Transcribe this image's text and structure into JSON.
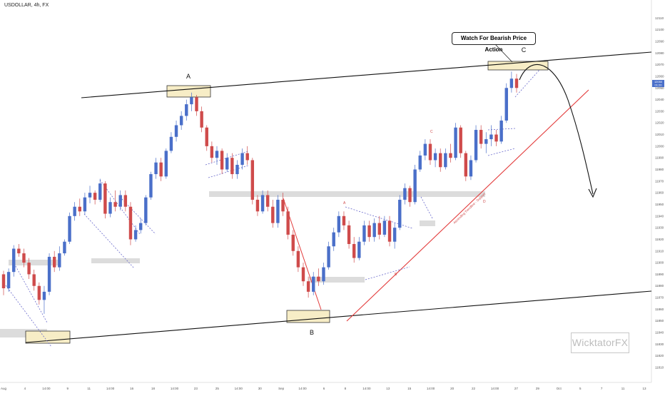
{
  "symbol": "USDOLLAR, 4h, FX",
  "annotations": {
    "callout": "Watch For Bearish Price Action",
    "label_a": "A",
    "label_b": "B",
    "label_c": "C",
    "trendline_label": "Ascending Trendline - Support",
    "small_a": "A",
    "small_b": "B",
    "small_c": "C",
    "small_d": "D"
  },
  "logo": "WicktatorFX",
  "chart_data": {
    "type": "candlestick",
    "symbol": "USDOLLAR",
    "timeframe": "4h",
    "ylim": [
      11810,
      12120
    ],
    "y_ticks": [
      "12110",
      "12100",
      "12090",
      "12080",
      "12070",
      "12060",
      "12050",
      "12040",
      "12030",
      "12020",
      "12010",
      "12000",
      "11990",
      "11980",
      "11970",
      "11960",
      "11950",
      "11940",
      "11930",
      "11920",
      "11910",
      "11900",
      "11890",
      "11880",
      "11870",
      "11860",
      "11850",
      "11840",
      "11830",
      "11820",
      "11810"
    ],
    "x_ticks": [
      "Aug",
      "4",
      "14:00",
      "9",
      "11",
      "14:00",
      "16",
      "18",
      "14:00",
      "23",
      "25",
      "14:00",
      "30",
      "Sep",
      "14:00",
      "6",
      "8",
      "14:00",
      "13",
      "15",
      "14:00",
      "20",
      "22",
      "14:00",
      "27",
      "29",
      "Oct",
      "5",
      "7",
      "11",
      "13"
    ],
    "price_tags": [
      "12050",
      "01:20"
    ],
    "colors": {
      "up": "#4a6fc9",
      "down": "#cf4b4b",
      "zone": "#f6ecc4",
      "grey_zone": "#d9d9d9",
      "trendline": "#e33b3b"
    },
    "key_points": [
      {
        "label": "A",
        "time": "Aug 21",
        "price": 12044
      },
      {
        "label": "B",
        "time": "Sep 4",
        "price": 11872
      },
      {
        "label": "C",
        "time": "Sep 28",
        "price": 12064
      }
    ],
    "candles": [
      {
        "o": 11890,
        "h": 11893,
        "l": 11872,
        "c": 11878
      },
      {
        "o": 11878,
        "h": 11895,
        "l": 11875,
        "c": 11892
      },
      {
        "o": 11892,
        "h": 11915,
        "l": 11888,
        "c": 11912
      },
      {
        "o": 11912,
        "h": 11916,
        "l": 11905,
        "c": 11908
      },
      {
        "o": 11908,
        "h": 11912,
        "l": 11896,
        "c": 11900
      },
      {
        "o": 11900,
        "h": 11904,
        "l": 11886,
        "c": 11890
      },
      {
        "o": 11890,
        "h": 11894,
        "l": 11876,
        "c": 11880
      },
      {
        "o": 11880,
        "h": 11883,
        "l": 11864,
        "c": 11868
      },
      {
        "o": 11868,
        "h": 11880,
        "l": 11856,
        "c": 11875
      },
      {
        "o": 11875,
        "h": 11908,
        "l": 11872,
        "c": 11905
      },
      {
        "o": 11905,
        "h": 11910,
        "l": 11892,
        "c": 11896
      },
      {
        "o": 11896,
        "h": 11914,
        "l": 11893,
        "c": 11908
      },
      {
        "o": 11908,
        "h": 11920,
        "l": 11906,
        "c": 11918
      },
      {
        "o": 11918,
        "h": 11943,
        "l": 11916,
        "c": 11940
      },
      {
        "o": 11940,
        "h": 11952,
        "l": 11936,
        "c": 11948
      },
      {
        "o": 11948,
        "h": 11955,
        "l": 11940,
        "c": 11944
      },
      {
        "o": 11944,
        "h": 11960,
        "l": 11941,
        "c": 11956
      },
      {
        "o": 11956,
        "h": 11966,
        "l": 11951,
        "c": 11960
      },
      {
        "o": 11960,
        "h": 11962,
        "l": 11950,
        "c": 11954
      },
      {
        "o": 11954,
        "h": 11972,
        "l": 11952,
        "c": 11968
      },
      {
        "o": 11968,
        "h": 11970,
        "l": 11938,
        "c": 11942
      },
      {
        "o": 11942,
        "h": 11956,
        "l": 11939,
        "c": 11952
      },
      {
        "o": 11952,
        "h": 11962,
        "l": 11944,
        "c": 11948
      },
      {
        "o": 11948,
        "h": 11962,
        "l": 11945,
        "c": 11958
      },
      {
        "o": 11958,
        "h": 11962,
        "l": 11944,
        "c": 11948
      },
      {
        "o": 11948,
        "h": 11952,
        "l": 11915,
        "c": 11920
      },
      {
        "o": 11920,
        "h": 11932,
        "l": 11918,
        "c": 11928
      },
      {
        "o": 11928,
        "h": 11938,
        "l": 11925,
        "c": 11934
      },
      {
        "o": 11934,
        "h": 11958,
        "l": 11932,
        "c": 11956
      },
      {
        "o": 11956,
        "h": 11978,
        "l": 11954,
        "c": 11976
      },
      {
        "o": 11976,
        "h": 11990,
        "l": 11972,
        "c": 11986
      },
      {
        "o": 11986,
        "h": 11990,
        "l": 11970,
        "c": 11974
      },
      {
        "o": 11974,
        "h": 11998,
        "l": 11972,
        "c": 11996
      },
      {
        "o": 11996,
        "h": 12012,
        "l": 11994,
        "c": 12008
      },
      {
        "o": 12008,
        "h": 12022,
        "l": 12004,
        "c": 12018
      },
      {
        "o": 12018,
        "h": 12030,
        "l": 12014,
        "c": 12026
      },
      {
        "o": 12026,
        "h": 12040,
        "l": 12022,
        "c": 12036
      },
      {
        "o": 12036,
        "h": 12046,
        "l": 12030,
        "c": 12042
      },
      {
        "o": 12042,
        "h": 12044,
        "l": 12026,
        "c": 12030
      },
      {
        "o": 12030,
        "h": 12034,
        "l": 12012,
        "c": 12016
      },
      {
        "o": 12016,
        "h": 12018,
        "l": 11996,
        "c": 12000
      },
      {
        "o": 12000,
        "h": 12004,
        "l": 11986,
        "c": 11990
      },
      {
        "o": 11990,
        "h": 12000,
        "l": 11984,
        "c": 11996
      },
      {
        "o": 11996,
        "h": 11998,
        "l": 11976,
        "c": 11980
      },
      {
        "o": 11980,
        "h": 11994,
        "l": 11978,
        "c": 11990
      },
      {
        "o": 11990,
        "h": 11994,
        "l": 11972,
        "c": 11976
      },
      {
        "o": 11976,
        "h": 11988,
        "l": 11972,
        "c": 11984
      },
      {
        "o": 11984,
        "h": 11998,
        "l": 11980,
        "c": 11994
      },
      {
        "o": 11994,
        "h": 12000,
        "l": 11984,
        "c": 11988
      },
      {
        "o": 11988,
        "h": 11990,
        "l": 11950,
        "c": 11954
      },
      {
        "o": 11954,
        "h": 11958,
        "l": 11940,
        "c": 11944
      },
      {
        "o": 11944,
        "h": 11962,
        "l": 11942,
        "c": 11958
      },
      {
        "o": 11958,
        "h": 11962,
        "l": 11944,
        "c": 11948
      },
      {
        "o": 11948,
        "h": 11954,
        "l": 11930,
        "c": 11934
      },
      {
        "o": 11934,
        "h": 11958,
        "l": 11930,
        "c": 11954
      },
      {
        "o": 11954,
        "h": 11960,
        "l": 11940,
        "c": 11944
      },
      {
        "o": 11944,
        "h": 11948,
        "l": 11920,
        "c": 11924
      },
      {
        "o": 11924,
        "h": 11928,
        "l": 11906,
        "c": 11910
      },
      {
        "o": 11910,
        "h": 11914,
        "l": 11892,
        "c": 11896
      },
      {
        "o": 11896,
        "h": 11900,
        "l": 11880,
        "c": 11884
      },
      {
        "o": 11884,
        "h": 11888,
        "l": 11870,
        "c": 11875
      },
      {
        "o": 11875,
        "h": 11892,
        "l": 11872,
        "c": 11888
      },
      {
        "o": 11888,
        "h": 11895,
        "l": 11880,
        "c": 11884
      },
      {
        "o": 11884,
        "h": 11900,
        "l": 11881,
        "c": 11896
      },
      {
        "o": 11896,
        "h": 11918,
        "l": 11894,
        "c": 11914
      },
      {
        "o": 11914,
        "h": 11930,
        "l": 11910,
        "c": 11926
      },
      {
        "o": 11926,
        "h": 11944,
        "l": 11922,
        "c": 11940
      },
      {
        "o": 11940,
        "h": 11944,
        "l": 11928,
        "c": 11932
      },
      {
        "o": 11932,
        "h": 11936,
        "l": 11912,
        "c": 11916
      },
      {
        "o": 11916,
        "h": 11922,
        "l": 11900,
        "c": 11904
      },
      {
        "o": 11904,
        "h": 11922,
        "l": 11902,
        "c": 11918
      },
      {
        "o": 11918,
        "h": 11936,
        "l": 11915,
        "c": 11932
      },
      {
        "o": 11932,
        "h": 11936,
        "l": 11918,
        "c": 11922
      },
      {
        "o": 11922,
        "h": 11938,
        "l": 11918,
        "c": 11934
      },
      {
        "o": 11934,
        "h": 11940,
        "l": 11920,
        "c": 11924
      },
      {
        "o": 11924,
        "h": 11940,
        "l": 11922,
        "c": 11936
      },
      {
        "o": 11936,
        "h": 11940,
        "l": 11914,
        "c": 11918
      },
      {
        "o": 11918,
        "h": 11934,
        "l": 11912,
        "c": 11930
      },
      {
        "o": 11930,
        "h": 11958,
        "l": 11928,
        "c": 11954
      },
      {
        "o": 11954,
        "h": 11968,
        "l": 11950,
        "c": 11964
      },
      {
        "o": 11964,
        "h": 11966,
        "l": 11948,
        "c": 11952
      },
      {
        "o": 11952,
        "h": 11984,
        "l": 11950,
        "c": 11980
      },
      {
        "o": 11980,
        "h": 11996,
        "l": 11978,
        "c": 11992
      },
      {
        "o": 11992,
        "h": 12006,
        "l": 11988,
        "c": 12002
      },
      {
        "o": 12002,
        "h": 12006,
        "l": 11984,
        "c": 11988
      },
      {
        "o": 11988,
        "h": 11998,
        "l": 11982,
        "c": 11994
      },
      {
        "o": 11994,
        "h": 11998,
        "l": 11978,
        "c": 11982
      },
      {
        "o": 11982,
        "h": 11998,
        "l": 11980,
        "c": 11994
      },
      {
        "o": 11994,
        "h": 12002,
        "l": 11986,
        "c": 11990
      },
      {
        "o": 11990,
        "h": 12020,
        "l": 11988,
        "c": 12016
      },
      {
        "o": 12016,
        "h": 12018,
        "l": 11990,
        "c": 11994
      },
      {
        "o": 11994,
        "h": 11996,
        "l": 11970,
        "c": 11974
      },
      {
        "o": 11974,
        "h": 11992,
        "l": 11971,
        "c": 11988
      },
      {
        "o": 11988,
        "h": 12018,
        "l": 11986,
        "c": 12014
      },
      {
        "o": 12014,
        "h": 12018,
        "l": 11998,
        "c": 12002
      },
      {
        "o": 12002,
        "h": 12012,
        "l": 11994,
        "c": 12006
      },
      {
        "o": 12006,
        "h": 12018,
        "l": 12000,
        "c": 12010
      },
      {
        "o": 12010,
        "h": 12014,
        "l": 12000,
        "c": 12004
      },
      {
        "o": 12004,
        "h": 12026,
        "l": 12002,
        "c": 12022
      },
      {
        "o": 12022,
        "h": 12054,
        "l": 12020,
        "c": 12050
      },
      {
        "o": 12050,
        "h": 12064,
        "l": 12046,
        "c": 12058
      },
      {
        "o": 12058,
        "h": 12062,
        "l": 12046,
        "c": 12050
      }
    ]
  }
}
